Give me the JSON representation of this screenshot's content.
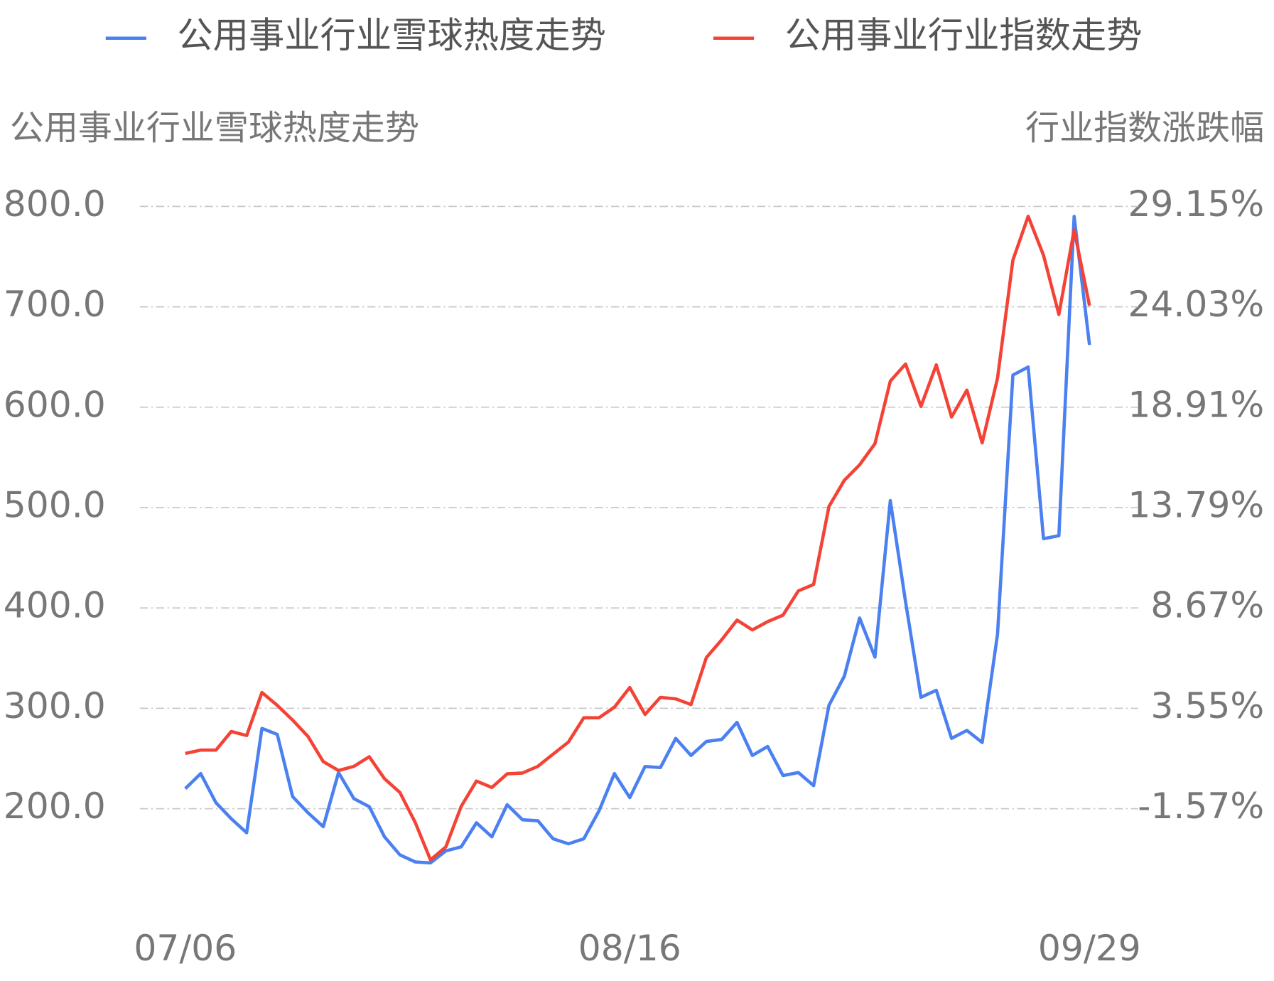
{
  "chart_data": {
    "type": "line",
    "legend": "top",
    "grid": true,
    "ylabel": "公用事业行业雪球热度走势",
    "y2label": "行业指数涨跌幅",
    "categories": [
      "07/06",
      null,
      null,
      null,
      null,
      null,
      null,
      null,
      null,
      null,
      null,
      null,
      null,
      null,
      null,
      null,
      null,
      null,
      null,
      null,
      null,
      null,
      null,
      null,
      null,
      null,
      null,
      null,
      null,
      "08/16",
      null,
      null,
      null,
      null,
      null,
      null,
      null,
      null,
      null,
      null,
      null,
      null,
      null,
      null,
      null,
      null,
      null,
      null,
      null,
      null,
      null,
      null,
      null,
      null,
      null,
      null,
      null,
      null,
      null,
      "09/29"
    ],
    "ylim": [
      100,
      850
    ],
    "yticks": [
      {
        "value": 200,
        "label": "200.0"
      },
      {
        "value": 300,
        "label": "300.0"
      },
      {
        "value": 400,
        "label": "400.0"
      },
      {
        "value": 500,
        "label": "500.0"
      },
      {
        "value": 600,
        "label": "600.0"
      },
      {
        "value": 700,
        "label": "700.0"
      },
      {
        "value": 800,
        "label": "800.0"
      }
    ],
    "y2lim": [
      -6.69,
      31.71
    ],
    "y2ticks": [
      {
        "value": -1.57,
        "label": "-1.57%"
      },
      {
        "value": 3.55,
        "label": "3.55%"
      },
      {
        "value": 8.67,
        "label": "8.67%"
      },
      {
        "value": 13.79,
        "label": "13.79%"
      },
      {
        "value": 18.91,
        "label": "18.91%"
      },
      {
        "value": 24.03,
        "label": "24.03%"
      },
      {
        "value": 29.15,
        "label": "29.15%"
      }
    ],
    "series": [
      {
        "name": "公用事业行业雪球热度走势",
        "color": "#4a80f0",
        "axis": "y",
        "values": [
          220,
          235,
          206,
          190,
          176,
          280,
          274,
          212,
          196,
          182,
          236,
          210,
          202,
          172,
          154,
          147,
          146,
          158,
          162,
          186,
          172,
          204,
          189,
          188,
          170,
          165,
          170,
          198,
          235,
          211,
          242,
          241,
          270,
          253,
          267,
          269,
          286,
          253,
          262,
          233,
          236,
          223,
          303,
          332,
          390,
          351,
          507,
          406,
          311,
          318,
          270,
          278,
          266,
          374,
          632,
          640,
          469,
          472,
          790,
          662
        ]
      },
      {
        "name": "公用事业行业指数走势",
        "color": "#f44336",
        "axis": "y2",
        "values": [
          1.25,
          1.42,
          1.42,
          2.37,
          2.16,
          4.36,
          3.7,
          2.95,
          2.12,
          0.83,
          0.38,
          0.59,
          1.08,
          -0.04,
          -0.74,
          -2.27,
          -4.18,
          -3.52,
          -1.45,
          -0.16,
          -0.49,
          0.21,
          0.25,
          0.59,
          1.21,
          1.83,
          3.07,
          3.07,
          3.61,
          4.61,
          3.24,
          4.11,
          4.03,
          3.74,
          6.14,
          7.05,
          8.05,
          7.55,
          7.97,
          8.3,
          9.54,
          9.87,
          13.85,
          15.18,
          15.97,
          17.05,
          20.24,
          21.11,
          18.95,
          21.07,
          18.41,
          19.78,
          17.09,
          20.4,
          26.41,
          28.65,
          26.66,
          23.64,
          27.95,
          24.09
        ]
      }
    ]
  }
}
